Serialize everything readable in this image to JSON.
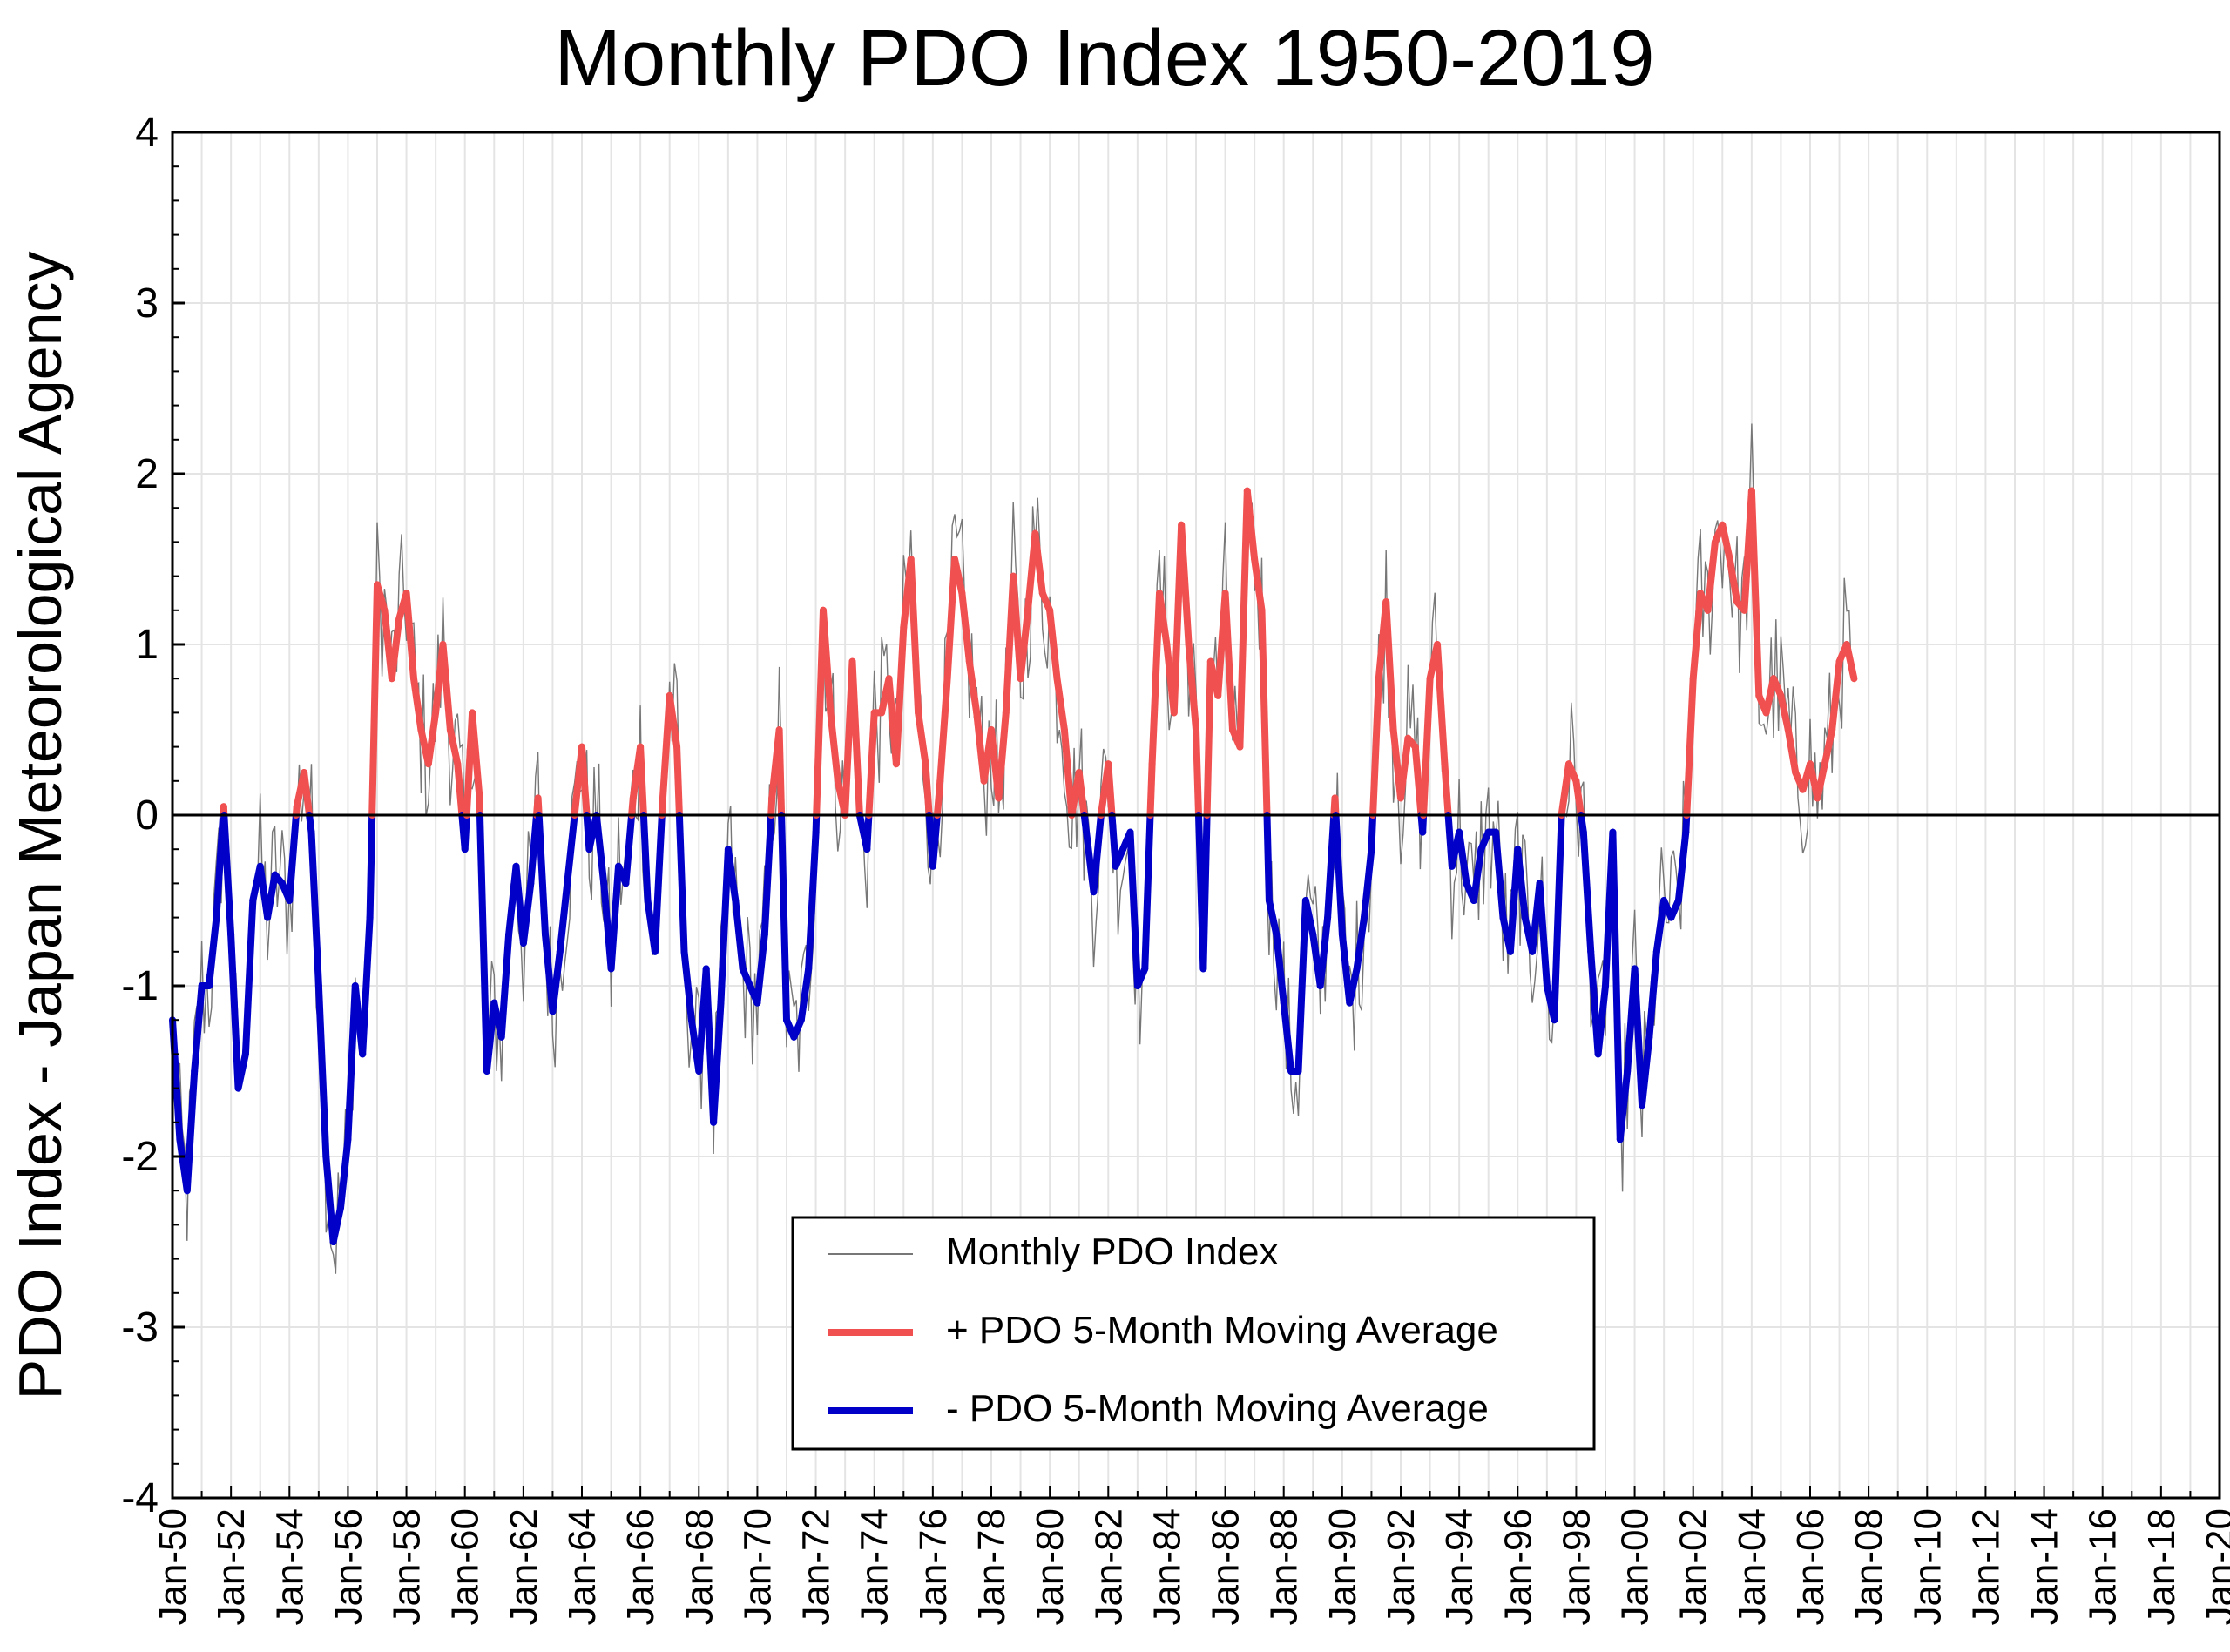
{
  "chart_data": {
    "type": "line",
    "title": "Monthly PDO Index 1950-2019",
    "xlabel": "",
    "ylabel": "PDO Index - Japan Meteorological Agency",
    "ylim": [
      -4,
      4
    ],
    "yticks": [
      4,
      3,
      2,
      1,
      0,
      -1,
      -2,
      -3,
      -4
    ],
    "xlim": [
      "Jan-50",
      "Jan-20"
    ],
    "x_tick_labels": [
      "Jan-50",
      "Jan-52",
      "Jan-54",
      "Jan-56",
      "Jan-58",
      "Jan-60",
      "Jan-62",
      "Jan-64",
      "Jan-66",
      "Jan-68",
      "Jan-70",
      "Jan-72",
      "Jan-74",
      "Jan-76",
      "Jan-78",
      "Jan-80",
      "Jan-82",
      "Jan-84",
      "Jan-86",
      "Jan-88",
      "Jan-90",
      "Jan-92",
      "Jan-94",
      "Jan-96",
      "Jan-98",
      "Jan-00",
      "Jan-02",
      "Jan-04",
      "Jan-06",
      "Jan-08",
      "Jan-10",
      "Jan-12",
      "Jan-14",
      "Jan-16",
      "Jan-18",
      "Jan-20"
    ],
    "grid": true,
    "legend_position": "bottom-center",
    "colors": {
      "positive": "#f05050",
      "negative": "#0000c8",
      "monthly": "#777777",
      "zero_line": "#000000"
    },
    "series": [
      {
        "name": "5-Month Moving Average",
        "note_sampling": "quarterly approximations read from chart",
        "x_start_year": 1950,
        "x_step_years": 0.25,
        "values": [
          -1.2,
          -1.9,
          -2.2,
          -1.5,
          -1.0,
          -1.0,
          -0.6,
          0.05,
          -0.7,
          -1.6,
          -1.4,
          -0.5,
          -0.3,
          -0.6,
          -0.35,
          -0.4,
          -0.5,
          0.05,
          0.25,
          -0.1,
          -1.0,
          -2.0,
          -2.5,
          -2.3,
          -1.9,
          -1.0,
          -1.4,
          -0.6,
          1.35,
          1.2,
          0.8,
          1.15,
          1.3,
          0.8,
          0.5,
          0.3,
          0.6,
          1.0,
          0.5,
          0.3,
          -0.2,
          0.6,
          0.1,
          -1.5,
          -1.1,
          -1.3,
          -0.7,
          -0.3,
          -0.75,
          -0.4,
          0.1,
          -0.7,
          -1.15,
          -0.8,
          -0.4,
          0.0,
          0.4,
          -0.2,
          0.0,
          -0.4,
          -0.9,
          -0.3,
          -0.4,
          0.1,
          0.4,
          -0.5,
          -0.8,
          0.05,
          0.7,
          0.4,
          -0.8,
          -1.2,
          -1.5,
          -0.9,
          -1.8,
          -1.1,
          -0.2,
          -0.5,
          -0.9,
          -1.0,
          -1.1,
          -0.7,
          0.1,
          0.5,
          -1.2,
          -1.3,
          -1.2,
          -0.9,
          -0.1,
          1.2,
          0.6,
          0.2,
          0.0,
          0.9,
          0.0,
          -0.2,
          0.6,
          0.6,
          0.8,
          0.3,
          1.1,
          1.5,
          0.6,
          0.3,
          -0.3,
          0.2,
          0.8,
          1.5,
          1.3,
          0.9,
          0.6,
          0.2,
          0.5,
          0.1,
          0.6,
          1.4,
          0.8,
          1.2,
          1.65,
          1.3,
          1.2,
          0.8,
          0.5,
          0.0,
          0.25,
          -0.1,
          -0.45,
          0.0,
          0.3,
          -0.3,
          -0.2,
          -0.1,
          -1.0,
          -0.9,
          0.3,
          1.3,
          1.0,
          0.6,
          1.7,
          1.0,
          0.5,
          -0.9,
          0.9,
          0.7,
          1.3,
          0.5,
          0.4,
          1.9,
          1.5,
          1.2,
          -0.5,
          -0.7,
          -1.1,
          -1.5,
          -1.5,
          -0.5,
          -0.7,
          -1.0,
          -0.6,
          0.1,
          -0.7,
          -1.1,
          -0.9,
          -0.6,
          -0.2,
          0.8,
          1.25,
          0.5,
          0.1,
          0.45,
          0.4,
          -0.1,
          0.8,
          1.0,
          0.3,
          -0.3,
          -0.1,
          -0.4,
          -0.5,
          -0.2,
          -0.1,
          -0.1,
          -0.6,
          -0.8,
          -0.2,
          -0.6,
          -0.8,
          -0.4,
          -1.0,
          -1.2,
          0.0,
          0.3,
          0.2,
          -0.1,
          -0.8,
          -1.4,
          -1.0,
          -0.1,
          -1.9,
          -1.5,
          -0.9,
          -1.7,
          -1.3,
          -0.8,
          -0.5,
          -0.6,
          -0.5,
          -0.1,
          0.8,
          1.3,
          1.2,
          1.6,
          1.7,
          1.5,
          1.25,
          1.2,
          1.9,
          0.7,
          0.6,
          0.8,
          0.7,
          0.5,
          0.25,
          0.15,
          0.3,
          0.1,
          0.3,
          0.5,
          0.9,
          1.0,
          0.8
        ]
      }
    ]
  },
  "legend": {
    "items": [
      {
        "label": "Monthly PDO Index"
      },
      {
        "label": "+ PDO 5-Month Moving Average"
      },
      {
        "label": "- PDO 5-Month Moving Average"
      }
    ]
  }
}
